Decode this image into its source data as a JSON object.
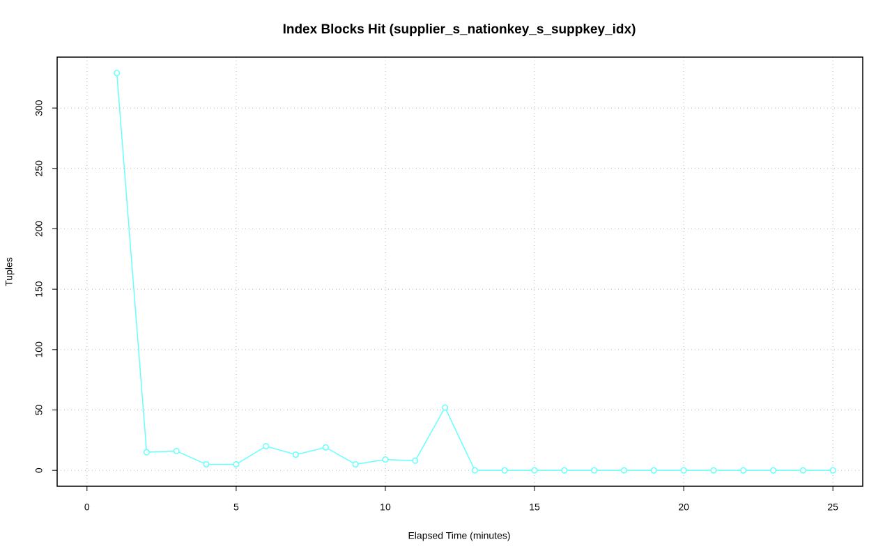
{
  "chart_data": {
    "type": "line",
    "title": "Index Blocks Hit (supplier_s_nationkey_s_suppkey_idx)",
    "x_label": "Elapsed Time (minutes)",
    "y_label": "Tuples",
    "x": [
      1,
      2,
      3,
      4,
      5,
      6,
      7,
      8,
      9,
      10,
      11,
      12,
      13,
      14,
      15,
      16,
      17,
      18,
      19,
      20,
      21,
      22,
      23,
      24,
      25
    ],
    "series": [
      {
        "color": "#66ffff",
        "values": [
          329,
          15,
          16,
          5,
          5,
          20,
          13,
          19,
          5,
          9,
          8,
          52,
          0,
          0,
          0,
          0,
          0,
          0,
          0,
          0,
          0,
          0,
          0,
          0,
          0
        ]
      }
    ],
    "xlim": [
      -1,
      26
    ],
    "xticks": [
      0,
      5,
      10,
      15,
      20,
      25
    ],
    "ylim": [
      -13.16,
      342.16
    ],
    "yticks": [
      0,
      50,
      100,
      150,
      200,
      250,
      300
    ],
    "grid": true
  }
}
